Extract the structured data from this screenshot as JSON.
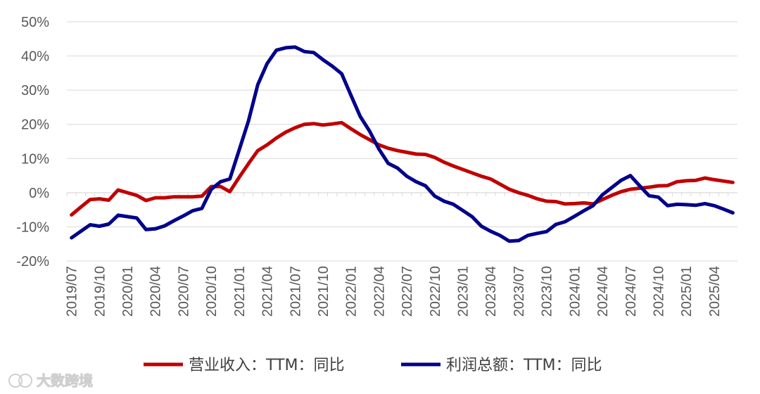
{
  "chart_data": {
    "type": "line",
    "title": "",
    "xlabel": "",
    "ylabel": "",
    "ylim": [
      -20,
      50
    ],
    "yticks": [
      -20,
      -10,
      0,
      10,
      20,
      30,
      40,
      50
    ],
    "ytick_labels": [
      "-20%",
      "-10%",
      "0%",
      "10%",
      "20%",
      "30%",
      "40%",
      "50%"
    ],
    "grid": true,
    "legend_position": "bottom",
    "x": [
      "2019/07",
      "2019/08",
      "2019/09",
      "2019/10",
      "2019/11",
      "2019/12",
      "2020/01",
      "2020/02",
      "2020/03",
      "2020/04",
      "2020/05",
      "2020/06",
      "2020/07",
      "2020/08",
      "2020/09",
      "2020/10",
      "2020/11",
      "2020/12",
      "2021/01",
      "2021/02",
      "2021/03",
      "2021/04",
      "2021/05",
      "2021/06",
      "2021/07",
      "2021/08",
      "2021/09",
      "2021/10",
      "2021/11",
      "2021/12",
      "2022/01",
      "2022/02",
      "2022/03",
      "2022/04",
      "2022/05",
      "2022/06",
      "2022/07",
      "2022/08",
      "2022/09",
      "2022/10",
      "2022/11",
      "2022/12",
      "2023/01",
      "2023/02",
      "2023/03",
      "2023/04",
      "2023/05",
      "2023/06",
      "2023/07",
      "2023/08",
      "2023/09",
      "2023/10",
      "2023/11",
      "2023/12",
      "2024/01",
      "2024/02",
      "2024/03",
      "2024/04",
      "2024/05",
      "2024/06",
      "2024/07",
      "2024/08",
      "2024/09",
      "2024/10",
      "2024/11",
      "2024/12",
      "2025/01",
      "2025/02",
      "2025/03",
      "2025/04",
      "2025/05",
      "2025/06"
    ],
    "tick_labels": [
      "2019/07",
      "2019/10",
      "2020/01",
      "2020/04",
      "2020/07",
      "2020/10",
      "2021/01",
      "2021/04",
      "2021/07",
      "2021/10",
      "2022/01",
      "2022/04",
      "2022/07",
      "2022/10",
      "2023/01",
      "2023/04",
      "2023/07",
      "2023/10",
      "2024/01",
      "2024/04",
      "2024/07",
      "2024/10",
      "2025/01",
      "2025/04"
    ],
    "series": [
      {
        "name": "营业收入：TTM：同比",
        "color": "#C00000",
        "values": [
          -6.5,
          -4.2,
          -2.0,
          -1.8,
          -2.2,
          0.8,
          0.0,
          -0.8,
          -2.3,
          -1.5,
          -1.5,
          -1.2,
          -1.2,
          -1.2,
          -1.0,
          1.8,
          1.8,
          0.3,
          4.5,
          8.5,
          12.3,
          14.0,
          16.0,
          17.7,
          19.0,
          20.0,
          20.2,
          19.8,
          20.1,
          20.5,
          18.7,
          17.0,
          15.5,
          14.0,
          13.0,
          12.3,
          11.8,
          11.3,
          11.2,
          10.3,
          8.9,
          7.8,
          6.8,
          5.8,
          4.8,
          4.0,
          2.5,
          1.0,
          0.0,
          -0.8,
          -1.8,
          -2.5,
          -2.6,
          -3.3,
          -3.2,
          -3.0,
          -3.3,
          -2.0,
          -0.8,
          0.3,
          1.0,
          1.3,
          1.6,
          2.0,
          2.1,
          3.2,
          3.5,
          3.6,
          4.3,
          3.8,
          3.4,
          3.0
        ]
      },
      {
        "name": "利润总额：TTM：同比",
        "color": "#00008B",
        "values": [
          -13.2,
          -11.3,
          -9.4,
          -9.8,
          -9.2,
          -6.6,
          -7.0,
          -7.4,
          -10.8,
          -10.6,
          -9.7,
          -8.2,
          -6.8,
          -5.3,
          -4.6,
          1.0,
          3.2,
          4.0,
          12.5,
          21.0,
          31.6,
          37.8,
          41.7,
          42.4,
          42.6,
          41.3,
          41.0,
          38.9,
          37.0,
          34.8,
          28.5,
          22.3,
          18.0,
          12.8,
          8.6,
          7.2,
          4.8,
          3.2,
          2.0,
          -1.0,
          -2.5,
          -3.4,
          -5.2,
          -7.0,
          -9.8,
          -11.3,
          -12.5,
          -14.2,
          -14.0,
          -12.5,
          -11.9,
          -11.4,
          -9.3,
          -8.5,
          -6.9,
          -5.3,
          -3.8,
          -0.6,
          1.5,
          3.6,
          5.0,
          2.0,
          -0.9,
          -1.3,
          -3.8,
          -3.4,
          -3.5,
          -3.7,
          -3.2,
          -3.8,
          -4.8,
          -5.9
        ]
      }
    ]
  },
  "watermark": {
    "text": "大数跨境"
  }
}
